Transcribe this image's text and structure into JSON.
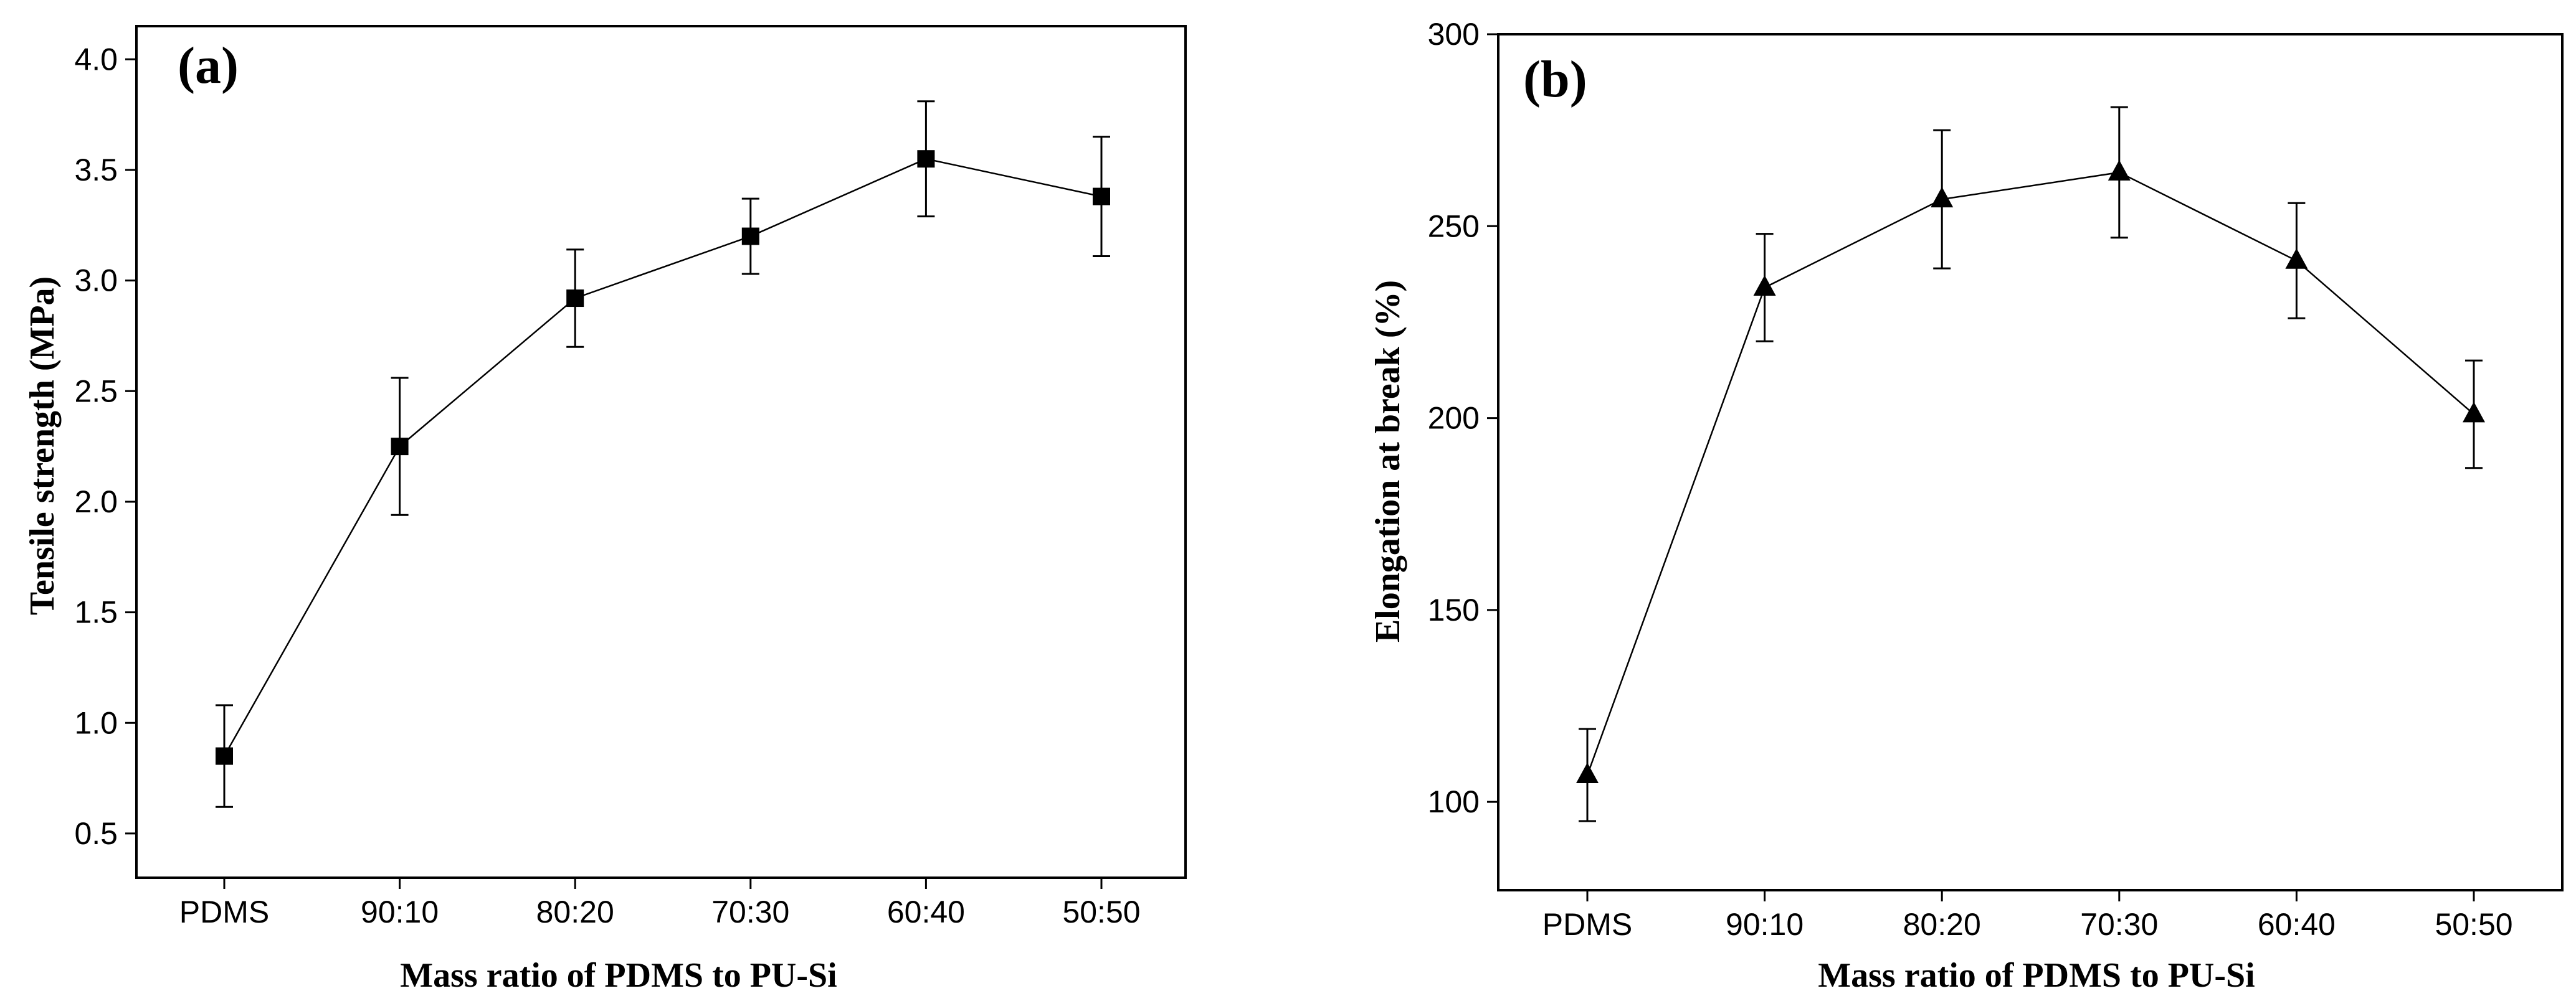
{
  "chart_data": [
    {
      "type": "line",
      "panel_label": "(a)",
      "title": "",
      "xlabel": "Mass ratio of PDMS to PU-Si",
      "ylabel": "Tensile strength (MPa)",
      "categories": [
        "PDMS",
        "90:10",
        "80:20",
        "70:30",
        "60:40",
        "50:50"
      ],
      "ylim": [
        0.3,
        4.15
      ],
      "yticks": [
        "0.5",
        "1.0",
        "1.5",
        "2.0",
        "2.5",
        "3.0",
        "3.5",
        "4.0"
      ],
      "marker": "square",
      "grid": false,
      "series": [
        {
          "name": "Tensile strength",
          "values": [
            0.85,
            2.25,
            2.92,
            3.2,
            3.55,
            3.38
          ],
          "error_low": [
            0.62,
            1.94,
            2.7,
            3.03,
            3.29,
            3.11
          ],
          "error_high": [
            1.08,
            2.56,
            3.14,
            3.37,
            3.81,
            3.65
          ]
        }
      ]
    },
    {
      "type": "line",
      "panel_label": "(b)",
      "title": "",
      "xlabel": "Mass ratio of PDMS to PU-Si",
      "ylabel": "Elongation at break (%)",
      "categories": [
        "PDMS",
        "90:10",
        "80:20",
        "70:30",
        "60:40",
        "50:50"
      ],
      "ylim": [
        77,
        300
      ],
      "yticks": [
        "100",
        "150",
        "200",
        "250",
        "300"
      ],
      "marker": "triangle",
      "grid": false,
      "series": [
        {
          "name": "Elongation at break",
          "values": [
            107,
            234,
            257,
            264,
            241,
            201
          ],
          "error_low": [
            95,
            220,
            239,
            247,
            226,
            187
          ],
          "error_high": [
            119,
            248,
            275,
            281,
            256,
            215
          ]
        }
      ]
    }
  ]
}
